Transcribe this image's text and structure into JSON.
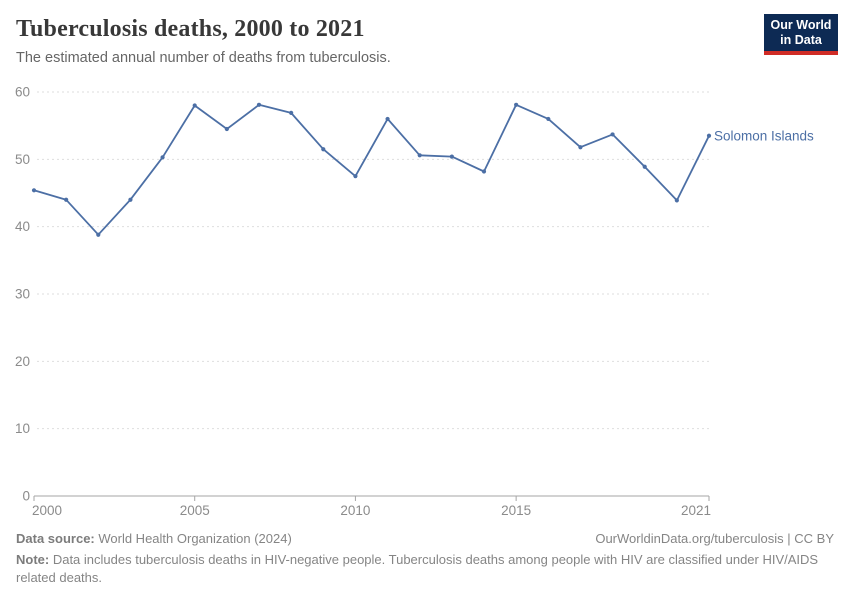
{
  "header": {
    "title": "Tuberculosis deaths, 2000 to 2021",
    "subtitle": "The estimated annual number of deaths from tuberculosis.",
    "logo_line1": "Our World",
    "logo_line2": "in Data"
  },
  "chart_data": {
    "type": "line",
    "title": "Tuberculosis deaths, 2000 to 2021",
    "entity_label": "Solomon Islands",
    "x": [
      2000,
      2001,
      2002,
      2003,
      2004,
      2005,
      2006,
      2007,
      2008,
      2009,
      2010,
      2011,
      2012,
      2013,
      2014,
      2015,
      2016,
      2017,
      2018,
      2019,
      2020,
      2021
    ],
    "series": [
      {
        "name": "Solomon Islands",
        "values": [
          45.4,
          44.0,
          38.8,
          44.0,
          50.3,
          58.0,
          54.5,
          58.1,
          56.9,
          51.5,
          47.5,
          56.0,
          50.6,
          50.4,
          48.2,
          58.1,
          56.0,
          51.8,
          53.7,
          48.9,
          43.9,
          53.5
        ]
      }
    ],
    "xlabel": "",
    "ylabel": "",
    "xlim": [
      2000,
      2021
    ],
    "ylim": [
      0,
      60
    ],
    "yticks": [
      0,
      10,
      20,
      30,
      40,
      50,
      60
    ],
    "xticks": [
      2000,
      2005,
      2010,
      2015,
      2021
    ],
    "grid": "horizontal-dashed",
    "legend_position": "end-of-line",
    "line_color": "#4c6fa5",
    "axis_color": "#a5a5a5",
    "grid_color": "#dedede",
    "tick_label_color": "#8b8b8b"
  },
  "footer": {
    "source_label": "Data source:",
    "source_text": " World Health Organization (2024)",
    "link_text": "OurWorldinData.org/tuberculosis | CC BY",
    "note_label": "Note:",
    "note_text": " Data includes tuberculosis deaths in HIV-negative people. Tuberculosis deaths among people with HIV are classified under HIV/AIDS related deaths."
  },
  "colors": {
    "logo_bg": "#0d2a54",
    "logo_red": "#d02c26",
    "accent_blue": "#4c6fa5"
  }
}
